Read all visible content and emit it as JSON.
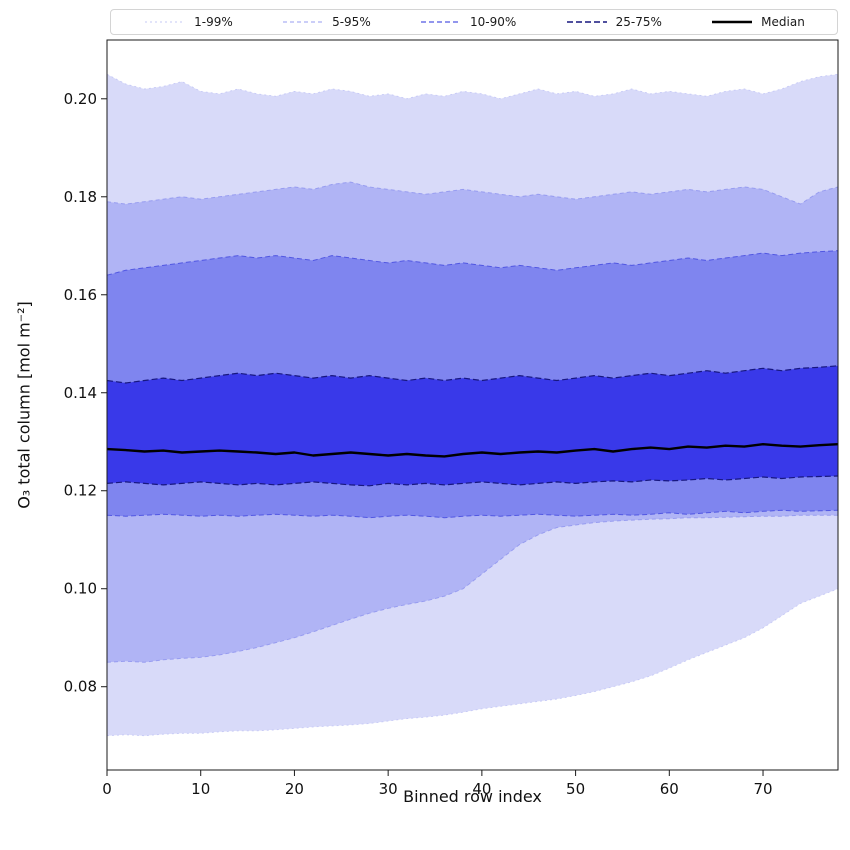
{
  "chart_data": {
    "type": "area",
    "title": "",
    "xlabel": "Binned row index",
    "ylabel": "O₃ total column [mol m⁻²]",
    "xlim": [
      0,
      78
    ],
    "ylim": [
      0.063,
      0.212
    ],
    "grid": false,
    "legend_position": "top",
    "x_ticks": [
      0,
      10,
      20,
      30,
      40,
      50,
      60,
      70
    ],
    "y_ticks": [
      0.08,
      0.1,
      0.12,
      0.14,
      0.16,
      0.18,
      0.2
    ],
    "x": [
      0,
      2,
      4,
      6,
      8,
      10,
      12,
      14,
      16,
      18,
      20,
      22,
      24,
      26,
      28,
      30,
      32,
      34,
      36,
      38,
      40,
      42,
      44,
      46,
      48,
      50,
      52,
      54,
      56,
      58,
      60,
      62,
      64,
      66,
      68,
      70,
      72,
      74,
      76,
      78
    ],
    "series": {
      "p1": [
        0.07,
        0.0702,
        0.07,
        0.0703,
        0.0705,
        0.0705,
        0.0708,
        0.071,
        0.071,
        0.0712,
        0.0715,
        0.0718,
        0.072,
        0.0722,
        0.0725,
        0.073,
        0.0735,
        0.0738,
        0.0742,
        0.0748,
        0.0755,
        0.076,
        0.0765,
        0.077,
        0.0775,
        0.0782,
        0.079,
        0.08,
        0.081,
        0.0822,
        0.0838,
        0.0855,
        0.087,
        0.0885,
        0.09,
        0.092,
        0.0945,
        0.097,
        0.0985,
        0.1
      ],
      "p5": [
        0.085,
        0.0852,
        0.085,
        0.0855,
        0.0858,
        0.086,
        0.0865,
        0.0872,
        0.088,
        0.089,
        0.09,
        0.0912,
        0.0925,
        0.0938,
        0.095,
        0.096,
        0.0968,
        0.0975,
        0.0985,
        0.1,
        0.103,
        0.106,
        0.109,
        0.111,
        0.1125,
        0.113,
        0.1135,
        0.1138,
        0.114,
        0.1142,
        0.1143,
        0.1145,
        0.1145,
        0.1146,
        0.1147,
        0.1148,
        0.1148,
        0.115,
        0.115,
        0.115
      ],
      "p10": [
        0.115,
        0.1148,
        0.115,
        0.1152,
        0.115,
        0.1148,
        0.115,
        0.1148,
        0.115,
        0.1152,
        0.115,
        0.1148,
        0.115,
        0.1148,
        0.1145,
        0.1148,
        0.115,
        0.1148,
        0.1145,
        0.1148,
        0.115,
        0.1148,
        0.115,
        0.1152,
        0.115,
        0.1148,
        0.115,
        0.1152,
        0.115,
        0.1152,
        0.1155,
        0.1152,
        0.1155,
        0.1158,
        0.1155,
        0.1158,
        0.116,
        0.1158,
        0.1159,
        0.116
      ],
      "p25": [
        0.1215,
        0.1218,
        0.1215,
        0.1212,
        0.1215,
        0.1218,
        0.1215,
        0.1212,
        0.1215,
        0.1212,
        0.1215,
        0.1218,
        0.1215,
        0.1212,
        0.121,
        0.1215,
        0.1212,
        0.1215,
        0.1212,
        0.1215,
        0.1218,
        0.1215,
        0.1212,
        0.1215,
        0.1218,
        0.1215,
        0.1218,
        0.122,
        0.1218,
        0.1222,
        0.122,
        0.1222,
        0.1225,
        0.1222,
        0.1225,
        0.1228,
        0.1225,
        0.1228,
        0.1229,
        0.123
      ],
      "median": [
        0.1285,
        0.1283,
        0.128,
        0.1282,
        0.1278,
        0.128,
        0.1282,
        0.128,
        0.1278,
        0.1275,
        0.1278,
        0.1272,
        0.1275,
        0.1278,
        0.1275,
        0.1272,
        0.1275,
        0.1272,
        0.127,
        0.1275,
        0.1278,
        0.1275,
        0.1278,
        0.128,
        0.1278,
        0.1282,
        0.1285,
        0.128,
        0.1285,
        0.1288,
        0.1285,
        0.129,
        0.1288,
        0.1292,
        0.129,
        0.1295,
        0.1292,
        0.129,
        0.1293,
        0.1295
      ],
      "p75": [
        0.1425,
        0.142,
        0.1425,
        0.143,
        0.1425,
        0.143,
        0.1435,
        0.144,
        0.1435,
        0.144,
        0.1435,
        0.143,
        0.1435,
        0.143,
        0.1435,
        0.143,
        0.1425,
        0.143,
        0.1425,
        0.143,
        0.1425,
        0.143,
        0.1435,
        0.143,
        0.1425,
        0.143,
        0.1435,
        0.143,
        0.1435,
        0.144,
        0.1435,
        0.144,
        0.1445,
        0.144,
        0.1445,
        0.145,
        0.1445,
        0.145,
        0.1452,
        0.1455
      ],
      "p90": [
        0.164,
        0.165,
        0.1655,
        0.166,
        0.1665,
        0.167,
        0.1675,
        0.168,
        0.1675,
        0.168,
        0.1675,
        0.167,
        0.168,
        0.1675,
        0.167,
        0.1665,
        0.167,
        0.1665,
        0.166,
        0.1665,
        0.166,
        0.1655,
        0.166,
        0.1655,
        0.165,
        0.1655,
        0.166,
        0.1665,
        0.166,
        0.1665,
        0.167,
        0.1675,
        0.167,
        0.1675,
        0.168,
        0.1685,
        0.168,
        0.1685,
        0.1688,
        0.169
      ],
      "p95": [
        0.179,
        0.1785,
        0.179,
        0.1795,
        0.18,
        0.1795,
        0.18,
        0.1805,
        0.181,
        0.1815,
        0.182,
        0.1815,
        0.1825,
        0.183,
        0.182,
        0.1815,
        0.181,
        0.1805,
        0.181,
        0.1815,
        0.181,
        0.1805,
        0.18,
        0.1805,
        0.18,
        0.1795,
        0.18,
        0.1805,
        0.181,
        0.1805,
        0.181,
        0.1815,
        0.181,
        0.1815,
        0.182,
        0.1815,
        0.18,
        0.1785,
        0.181,
        0.182
      ],
      "p99": [
        0.205,
        0.203,
        0.202,
        0.2025,
        0.2035,
        0.2015,
        0.201,
        0.202,
        0.201,
        0.2005,
        0.2015,
        0.201,
        0.202,
        0.2015,
        0.2005,
        0.201,
        0.2,
        0.201,
        0.2005,
        0.2015,
        0.201,
        0.2,
        0.201,
        0.202,
        0.201,
        0.2015,
        0.2005,
        0.201,
        0.202,
        0.201,
        0.2015,
        0.201,
        0.2005,
        0.2015,
        0.202,
        0.201,
        0.202,
        0.2035,
        0.2045,
        0.205
      ]
    },
    "bands": [
      {
        "label": "1-99%",
        "lower": "p1",
        "upper": "p99",
        "fill": "#d8daf9",
        "edge": "#c6c9f6",
        "dash": "2 3",
        "edge_width": 0.9
      },
      {
        "label": "5-95%",
        "lower": "p5",
        "upper": "p95",
        "fill": "#b0b4f5",
        "edge": "#979cf0",
        "dash": "4 3",
        "edge_width": 1
      },
      {
        "label": "10-90%",
        "lower": "p10",
        "upper": "p90",
        "fill": "#7f85ef",
        "edge": "#5157e2",
        "dash": "5 3",
        "edge_width": 1
      },
      {
        "label": "25-75%",
        "lower": "p25",
        "upper": "p75",
        "fill": "#3939e9",
        "edge": "#17177f",
        "dash": "6 3",
        "edge_width": 1.2
      }
    ],
    "median_style": {
      "color": "#000000",
      "width": 2.4
    },
    "legend": {
      "items": [
        {
          "label": "1-99%",
          "color": "#c6c9f6",
          "width": 1.0,
          "dash": "2 3"
        },
        {
          "label": "5-95%",
          "color": "#979cf0",
          "width": 1.0,
          "dash": "4 3"
        },
        {
          "label": "10-90%",
          "color": "#5157e2",
          "width": 1.2,
          "dash": "5 3"
        },
        {
          "label": "25-75%",
          "color": "#17177f",
          "width": 1.6,
          "dash": "6 3"
        },
        {
          "label": "Median",
          "color": "#000000",
          "width": 2.6,
          "dash": ""
        }
      ]
    }
  }
}
